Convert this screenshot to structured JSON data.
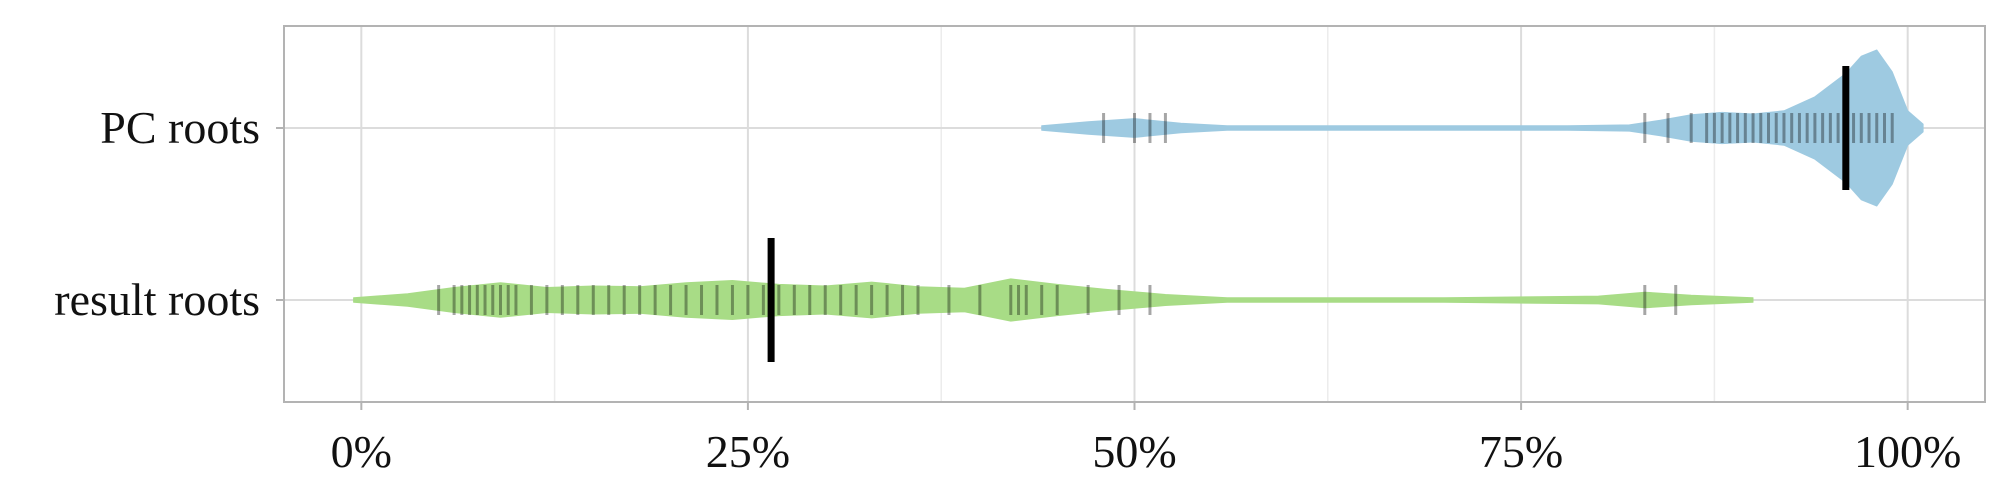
{
  "chart_data": {
    "type": "violin",
    "categories": [
      "PC roots",
      "result roots"
    ],
    "xlim": [
      -0.05,
      1.05
    ],
    "x_ticks": [
      0,
      0.25,
      0.5,
      0.75,
      1.0
    ],
    "x_tick_labels": [
      "0%",
      "25%",
      "50%",
      "75%",
      "100%"
    ],
    "grid": true,
    "colors": {
      "PC roots": "#9ecae1",
      "result roots": "#a8dc86",
      "median": "#000000",
      "points": "#000000"
    },
    "series": [
      {
        "category": "PC roots",
        "median": 0.96,
        "range": [
          0.44,
          1.01
        ],
        "density": [
          [
            0.44,
            0.03
          ],
          [
            0.47,
            0.08
          ],
          [
            0.5,
            0.12
          ],
          [
            0.53,
            0.06
          ],
          [
            0.56,
            0.03
          ],
          [
            0.62,
            0.03
          ],
          [
            0.7,
            0.03
          ],
          [
            0.78,
            0.03
          ],
          [
            0.82,
            0.04
          ],
          [
            0.84,
            0.1
          ],
          [
            0.86,
            0.17
          ],
          [
            0.88,
            0.2
          ],
          [
            0.9,
            0.18
          ],
          [
            0.92,
            0.22
          ],
          [
            0.94,
            0.4
          ],
          [
            0.96,
            0.7
          ],
          [
            0.97,
            0.92
          ],
          [
            0.98,
            1.0
          ],
          [
            0.99,
            0.72
          ],
          [
            1.0,
            0.22
          ],
          [
            1.01,
            0.05
          ]
        ],
        "points": [
          0.48,
          0.5,
          0.51,
          0.52,
          0.83,
          0.845,
          0.86,
          0.87,
          0.875,
          0.88,
          0.885,
          0.89,
          0.895,
          0.9,
          0.905,
          0.91,
          0.915,
          0.92,
          0.925,
          0.93,
          0.935,
          0.94,
          0.945,
          0.95,
          0.955,
          0.96,
          0.965,
          0.97,
          0.975,
          0.98,
          0.985,
          0.99
        ]
      },
      {
        "category": "result roots",
        "median": 0.265,
        "range": [
          -0.005,
          0.9
        ],
        "density": [
          [
            -0.005,
            0.03
          ],
          [
            0.03,
            0.08
          ],
          [
            0.06,
            0.16
          ],
          [
            0.09,
            0.22
          ],
          [
            0.12,
            0.16
          ],
          [
            0.15,
            0.18
          ],
          [
            0.18,
            0.17
          ],
          [
            0.21,
            0.22
          ],
          [
            0.24,
            0.25
          ],
          [
            0.27,
            0.2
          ],
          [
            0.3,
            0.18
          ],
          [
            0.33,
            0.23
          ],
          [
            0.36,
            0.17
          ],
          [
            0.39,
            0.15
          ],
          [
            0.42,
            0.27
          ],
          [
            0.45,
            0.2
          ],
          [
            0.48,
            0.14
          ],
          [
            0.52,
            0.07
          ],
          [
            0.56,
            0.03
          ],
          [
            0.7,
            0.03
          ],
          [
            0.8,
            0.05
          ],
          [
            0.83,
            0.1
          ],
          [
            0.86,
            0.06
          ],
          [
            0.9,
            0.03
          ]
        ],
        "points": [
          0.05,
          0.06,
          0.065,
          0.07,
          0.075,
          0.08,
          0.085,
          0.09,
          0.095,
          0.1,
          0.11,
          0.12,
          0.13,
          0.14,
          0.15,
          0.16,
          0.17,
          0.18,
          0.19,
          0.2,
          0.21,
          0.22,
          0.23,
          0.24,
          0.25,
          0.26,
          0.27,
          0.28,
          0.29,
          0.3,
          0.31,
          0.32,
          0.33,
          0.34,
          0.35,
          0.36,
          0.38,
          0.4,
          0.42,
          0.425,
          0.43,
          0.44,
          0.45,
          0.47,
          0.49,
          0.51,
          0.83,
          0.85
        ]
      }
    ]
  }
}
